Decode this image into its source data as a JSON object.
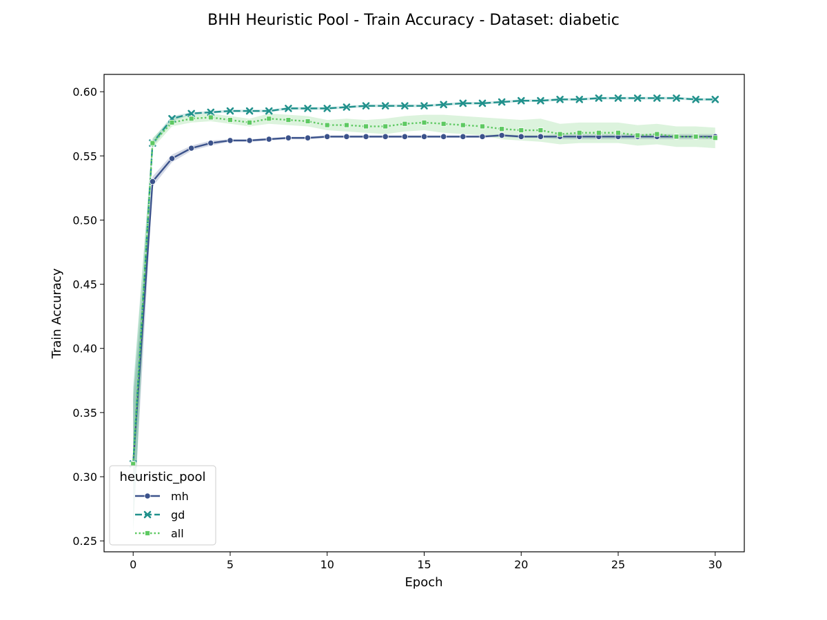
{
  "chart_data": {
    "type": "line",
    "title": "BHH Heuristic Pool - Train Accuracy - Dataset: diabetic",
    "xlabel": "Epoch",
    "ylabel": "Train Accuracy",
    "xlim": [
      -1.5,
      31.5
    ],
    "ylim": [
      0.2415,
      0.6135
    ],
    "xticks": [
      0,
      5,
      10,
      15,
      20,
      25,
      30
    ],
    "yticks": [
      0.25,
      0.3,
      0.35,
      0.4,
      0.45,
      0.5,
      0.55,
      0.6
    ],
    "ytick_labels": [
      "0.25",
      "0.30",
      "0.35",
      "0.40",
      "0.45",
      "0.50",
      "0.55",
      "0.60"
    ],
    "grid": false,
    "legend": {
      "title": "heuristic_pool",
      "placement": "lower-left"
    },
    "x": [
      0,
      1,
      2,
      3,
      4,
      5,
      6,
      7,
      8,
      9,
      10,
      11,
      12,
      13,
      14,
      15,
      16,
      17,
      18,
      19,
      20,
      21,
      22,
      23,
      24,
      25,
      26,
      27,
      28,
      29,
      30
    ],
    "series": [
      {
        "name": "mh",
        "color": "#3b528b",
        "linestyle": "solid",
        "marker": "circle",
        "values": [
          0.31,
          0.53,
          0.548,
          0.556,
          0.56,
          0.562,
          0.562,
          0.563,
          0.564,
          0.564,
          0.565,
          0.565,
          0.565,
          0.565,
          0.565,
          0.565,
          0.565,
          0.565,
          0.565,
          0.566,
          0.565,
          0.565,
          0.565,
          0.565,
          0.565,
          0.565,
          0.565,
          0.565,
          0.565,
          0.565,
          0.565
        ],
        "lower": [
          0.26,
          0.526,
          0.545,
          0.554,
          0.558,
          0.561,
          0.561,
          0.562,
          0.563,
          0.563,
          0.564,
          0.564,
          0.564,
          0.564,
          0.564,
          0.564,
          0.564,
          0.564,
          0.564,
          0.565,
          0.564,
          0.564,
          0.563,
          0.563,
          0.563,
          0.563,
          0.563,
          0.563,
          0.563,
          0.563,
          0.563
        ],
        "upper": [
          0.36,
          0.534,
          0.551,
          0.558,
          0.562,
          0.563,
          0.563,
          0.564,
          0.565,
          0.565,
          0.566,
          0.566,
          0.566,
          0.566,
          0.566,
          0.566,
          0.566,
          0.566,
          0.566,
          0.567,
          0.566,
          0.566,
          0.567,
          0.567,
          0.567,
          0.567,
          0.567,
          0.567,
          0.567,
          0.567,
          0.567
        ]
      },
      {
        "name": "gd",
        "color": "#21918c",
        "linestyle": "dashed",
        "marker": "x",
        "values": [
          0.31,
          0.56,
          0.579,
          0.583,
          0.584,
          0.585,
          0.585,
          0.585,
          0.587,
          0.587,
          0.587,
          0.588,
          0.589,
          0.589,
          0.589,
          0.589,
          0.59,
          0.591,
          0.591,
          0.592,
          0.593,
          0.593,
          0.594,
          0.594,
          0.595,
          0.595,
          0.595,
          0.595,
          0.595,
          0.594,
          0.594
        ],
        "lower": [
          0.255,
          0.557,
          0.577,
          0.582,
          0.583,
          0.584,
          0.584,
          0.584,
          0.586,
          0.586,
          0.586,
          0.587,
          0.588,
          0.588,
          0.588,
          0.588,
          0.589,
          0.59,
          0.59,
          0.591,
          0.592,
          0.592,
          0.593,
          0.593,
          0.594,
          0.594,
          0.594,
          0.594,
          0.594,
          0.593,
          0.593
        ],
        "upper": [
          0.37,
          0.563,
          0.581,
          0.584,
          0.585,
          0.586,
          0.586,
          0.586,
          0.588,
          0.588,
          0.588,
          0.589,
          0.59,
          0.59,
          0.59,
          0.59,
          0.591,
          0.592,
          0.592,
          0.593,
          0.594,
          0.594,
          0.595,
          0.595,
          0.596,
          0.596,
          0.596,
          0.596,
          0.596,
          0.595,
          0.595
        ]
      },
      {
        "name": "all",
        "color": "#5ec962",
        "linestyle": "dotted",
        "marker": "square",
        "values": [
          0.31,
          0.56,
          0.576,
          0.579,
          0.58,
          0.578,
          0.576,
          0.579,
          0.578,
          0.577,
          0.574,
          0.574,
          0.573,
          0.573,
          0.575,
          0.576,
          0.575,
          0.574,
          0.573,
          0.571,
          0.57,
          0.57,
          0.567,
          0.568,
          0.568,
          0.568,
          0.566,
          0.567,
          0.565,
          0.565,
          0.564
        ],
        "lower": [
          0.255,
          0.556,
          0.573,
          0.576,
          0.577,
          0.575,
          0.573,
          0.575,
          0.574,
          0.573,
          0.57,
          0.569,
          0.568,
          0.567,
          0.569,
          0.57,
          0.568,
          0.567,
          0.566,
          0.563,
          0.562,
          0.561,
          0.559,
          0.56,
          0.56,
          0.56,
          0.558,
          0.559,
          0.557,
          0.557,
          0.556
        ],
        "upper": [
          0.365,
          0.564,
          0.579,
          0.582,
          0.583,
          0.581,
          0.579,
          0.583,
          0.582,
          0.581,
          0.578,
          0.579,
          0.578,
          0.579,
          0.581,
          0.582,
          0.582,
          0.581,
          0.58,
          0.579,
          0.578,
          0.579,
          0.575,
          0.576,
          0.576,
          0.576,
          0.574,
          0.575,
          0.573,
          0.573,
          0.572
        ]
      }
    ]
  }
}
